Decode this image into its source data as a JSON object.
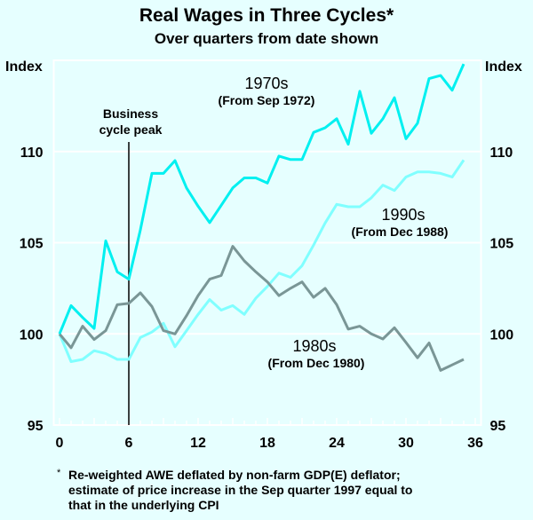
{
  "chart_data": {
    "type": "line",
    "title": "Real Wages in Three Cycles*",
    "subtitle": "Over quarters from date shown",
    "ylabel_left": "Index",
    "ylabel_right": "Index",
    "xlim": [
      -0.5,
      36.5
    ],
    "ylim": [
      95,
      115
    ],
    "xticks": [
      0,
      6,
      12,
      18,
      24,
      30,
      36
    ],
    "yticks": [
      95,
      100,
      105,
      110
    ],
    "grid": true,
    "x": [
      0,
      1,
      2,
      3,
      4,
      5,
      6,
      7,
      8,
      9,
      10,
      11,
      12,
      13,
      14,
      15,
      16,
      17,
      18,
      19,
      20,
      21,
      22,
      23,
      24,
      25,
      26,
      27,
      28,
      29,
      30,
      31,
      32,
      33,
      34,
      35
    ],
    "series": [
      {
        "name": "1970s",
        "sublabel": "(From Sep 1972)",
        "color": "#00f0f0",
        "values": [
          100,
          101.55,
          100.9,
          100.3,
          105.1,
          103.4,
          103.0,
          105.7,
          108.8,
          108.8,
          109.5,
          108.0,
          107.0,
          106.1,
          107.05,
          108.0,
          108.55,
          108.55,
          108.27,
          109.75,
          109.56,
          109.56,
          111.05,
          111.3,
          111.8,
          110.4,
          113.3,
          111.0,
          111.8,
          112.95,
          110.7,
          111.55,
          114.0,
          114.17,
          113.36,
          114.8
        ]
      },
      {
        "name": "1980s",
        "sublabel": "(From Dec 1980)",
        "color": "#7a9696",
        "values": [
          100,
          99.24,
          100.42,
          99.69,
          100.18,
          101.6,
          101.67,
          102.25,
          101.5,
          100.18,
          100.0,
          101.0,
          102.1,
          103.0,
          103.2,
          104.8,
          104.0,
          103.4,
          102.85,
          102.1,
          102.5,
          102.85,
          102.0,
          102.5,
          101.6,
          100.26,
          100.42,
          100.0,
          99.72,
          100.34,
          99.53,
          98.69,
          99.5,
          98.0,
          98.3,
          98.6
        ]
      },
      {
        "name": "1990s",
        "sublabel": "(From Dec 1988)",
        "color": "#80ffff",
        "values": [
          100,
          98.48,
          98.6,
          99.08,
          98.92,
          98.6,
          98.6,
          99.8,
          100.1,
          100.58,
          99.29,
          100.18,
          101.07,
          101.88,
          101.3,
          101.55,
          101.07,
          101.96,
          102.6,
          103.33,
          103.1,
          103.74,
          104.87,
          106.08,
          107.1,
          106.97,
          106.97,
          107.46,
          108.16,
          107.86,
          108.6,
          108.88,
          108.88,
          108.8,
          108.6,
          109.53
        ]
      }
    ],
    "annotations": [
      {
        "text_lines": [
          "Business",
          "cycle peak"
        ],
        "x": 6
      }
    ],
    "footnote_marker": "*",
    "footnote": [
      "Re-weighted AWE deflated by non-farm GDP(E) deflator;",
      "estimate of price increase in the Sep quarter 1997 equal to",
      "that in the underlying CPI"
    ]
  }
}
